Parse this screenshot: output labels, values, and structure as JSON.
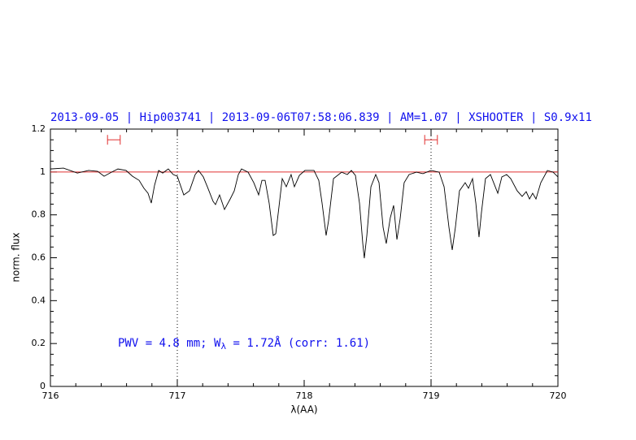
{
  "chart_data": {
    "type": "line",
    "title": "2013-09-05 | Hip003741 | 2013-09-06T07:58:06.839 | AM=1.07 | XSHOOTER | S0.9x11",
    "x_label": "λ(AA)",
    "y_label": "norm. flux",
    "annotation": [
      "PWV = 4.8 mm; W",
      "λ",
      " = 1.72Å (corr: 1.61)"
    ],
    "color": "#000000",
    "x": [
      716.0,
      716.103,
      716.212,
      716.301,
      716.372,
      716.423,
      716.481,
      716.532,
      716.596,
      716.647,
      716.699,
      716.737,
      716.769,
      716.795,
      716.821,
      716.853,
      716.885,
      716.929,
      716.968,
      717.0,
      717.051,
      717.096,
      717.141,
      717.167,
      717.205,
      717.237,
      717.282,
      717.301,
      717.333,
      717.372,
      717.417,
      717.449,
      717.481,
      717.506,
      717.558,
      717.603,
      717.641,
      717.667,
      717.692,
      717.724,
      717.756,
      717.776,
      717.801,
      717.827,
      717.859,
      717.897,
      717.923,
      717.962,
      718.006,
      718.077,
      718.115,
      718.141,
      718.173,
      718.192,
      718.231,
      718.295,
      718.34,
      718.372,
      718.404,
      718.436,
      718.462,
      718.474,
      718.494,
      718.526,
      718.564,
      718.59,
      718.622,
      718.647,
      718.679,
      718.705,
      718.731,
      718.756,
      718.788,
      718.827,
      718.885,
      718.936,
      719.0,
      719.064,
      719.103,
      719.141,
      719.167,
      719.192,
      719.224,
      719.269,
      719.295,
      719.327,
      719.353,
      719.378,
      719.397,
      719.429,
      719.468,
      719.506,
      719.526,
      719.558,
      719.596,
      719.628,
      719.679,
      719.718,
      719.75,
      719.776,
      719.801,
      719.827,
      719.865,
      719.917,
      719.962,
      720.0
    ],
    "values": [
      1.014,
      1.018,
      0.995,
      1.007,
      1.003,
      0.98,
      0.999,
      1.014,
      1.007,
      0.98,
      0.961,
      0.924,
      0.901,
      0.855,
      0.939,
      1.007,
      0.995,
      1.014,
      0.988,
      0.98,
      0.893,
      0.912,
      0.988,
      1.007,
      0.977,
      0.931,
      0.863,
      0.848,
      0.893,
      0.825,
      0.874,
      0.912,
      0.988,
      1.014,
      0.999,
      0.95,
      0.893,
      0.961,
      0.961,
      0.855,
      0.704,
      0.712,
      0.836,
      0.969,
      0.931,
      0.988,
      0.931,
      0.984,
      1.007,
      1.007,
      0.961,
      0.855,
      0.704,
      0.772,
      0.969,
      0.999,
      0.988,
      1.007,
      0.984,
      0.855,
      0.666,
      0.598,
      0.704,
      0.931,
      0.988,
      0.95,
      0.742,
      0.666,
      0.787,
      0.844,
      0.685,
      0.78,
      0.95,
      0.988,
      0.999,
      0.992,
      1.007,
      0.999,
      0.931,
      0.742,
      0.636,
      0.742,
      0.912,
      0.95,
      0.924,
      0.969,
      0.855,
      0.696,
      0.81,
      0.969,
      0.988,
      0.931,
      0.901,
      0.977,
      0.988,
      0.969,
      0.912,
      0.886,
      0.908,
      0.874,
      0.901,
      0.874,
      0.95,
      1.007,
      0.999,
      0.977
    ],
    "continuum_level": 1,
    "continuum_color": "#e03030",
    "vlines": [
      717,
      719
    ],
    "windows": [
      [
        716.45,
        716.55
      ],
      [
        718.95,
        719.05
      ]
    ],
    "window_y": 1.15,
    "xlim": [
      716,
      720
    ],
    "ylim": [
      0,
      1.2
    ],
    "xticks": [
      716,
      717,
      718,
      719,
      720
    ],
    "yticks": [
      0,
      0.2,
      0.4,
      0.6,
      0.8,
      1,
      1.2
    ],
    "xminorticks": [
      716.2,
      716.4,
      716.6,
      716.8,
      717.2,
      717.4,
      717.6,
      717.8,
      718.2,
      718.4,
      718.6,
      718.8,
      719.2,
      719.4,
      719.6,
      719.8
    ],
    "yminorticks": [
      0.05,
      0.1,
      0.15,
      0.25,
      0.3,
      0.35,
      0.45,
      0.5,
      0.55,
      0.65,
      0.7,
      0.75,
      0.85,
      0.9,
      0.95,
      1.05,
      1.1,
      1.15
    ]
  }
}
